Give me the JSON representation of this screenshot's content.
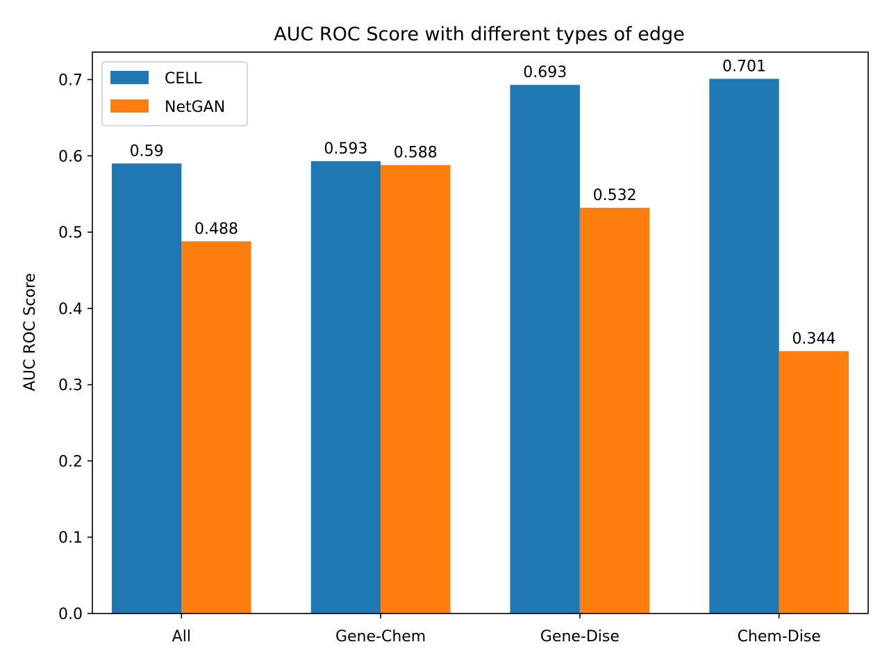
{
  "chart_data": {
    "type": "bar",
    "title": "AUC ROC Score with different types of edge",
    "xlabel": "",
    "ylabel": "AUC ROC Score",
    "categories": [
      "All",
      "Gene-Chem",
      "Gene-Dise",
      "Chem-Dise"
    ],
    "series": [
      {
        "name": "CELL",
        "color": "#1f77b4",
        "values": [
          0.59,
          0.593,
          0.693,
          0.701
        ],
        "labels": [
          "0.59",
          "0.593",
          "0.693",
          "0.701"
        ]
      },
      {
        "name": "NetGAN",
        "color": "#ff7f0e",
        "values": [
          0.488,
          0.588,
          0.532,
          0.344
        ],
        "labels": [
          "0.488",
          "0.588",
          "0.532",
          "0.344"
        ]
      }
    ],
    "ylim": [
      0,
      0.736
    ],
    "yticks": [
      0.0,
      0.1,
      0.2,
      0.3,
      0.4,
      0.5,
      0.6,
      0.7
    ],
    "ytick_labels": [
      "0.0",
      "0.1",
      "0.2",
      "0.3",
      "0.4",
      "0.5",
      "0.6",
      "0.7"
    ],
    "grid": false,
    "legend_position": "top-left"
  }
}
